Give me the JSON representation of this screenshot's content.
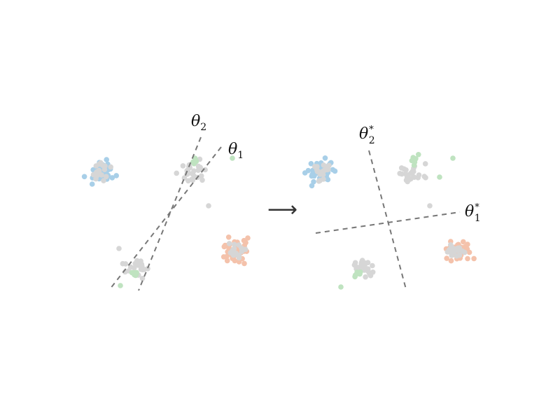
{
  "labels": {
    "left_theta_2": {
      "sym": "θ",
      "sub": "2",
      "sup": ""
    },
    "left_theta_1": {
      "sym": "θ",
      "sub": "1",
      "sup": ""
    },
    "right_theta_2": {
      "sym": "θ",
      "sub": "2",
      "sup": "*"
    },
    "right_theta_1": {
      "sym": "θ",
      "sub": "1",
      "sup": "*"
    }
  },
  "arrow": {
    "glyph": "⟶"
  },
  "colors": {
    "blue": "#a8cfe8",
    "gray": "#d6d6d6",
    "green": "#bfe3c0",
    "orange": "#f4c2ab",
    "line": "#777777"
  }
}
